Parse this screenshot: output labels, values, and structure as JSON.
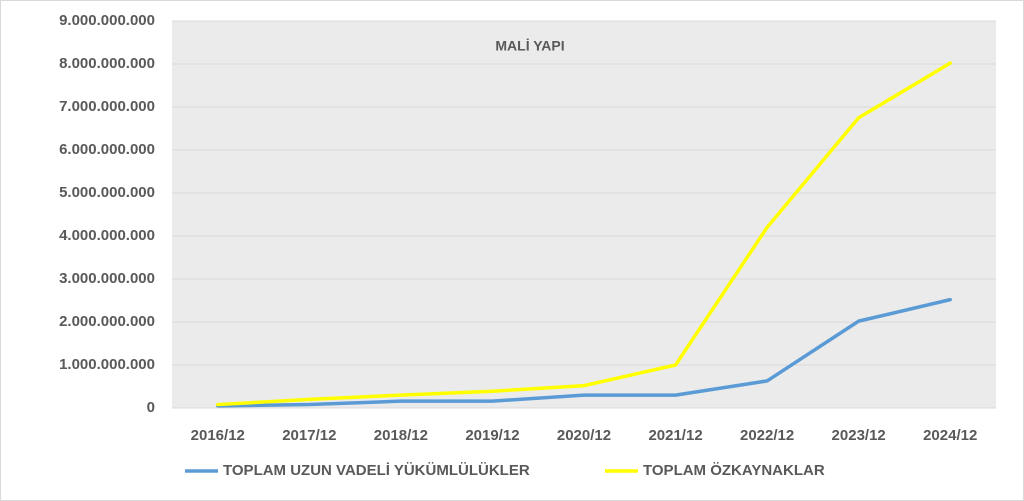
{
  "chart_data": {
    "type": "line",
    "title": "MALİ YAPI",
    "categories": [
      "2016/12",
      "2017/12",
      "2018/12",
      "2019/12",
      "2020/12",
      "2021/12",
      "2022/12",
      "2023/12",
      "2024/12"
    ],
    "series": [
      {
        "name": "TOPLAM UZUN VADELİ YÜKÜMLÜLÜKLER",
        "color": "#5b9bd5",
        "values": [
          50000000,
          80000000,
          160000000,
          160000000,
          300000000,
          300000000,
          630000000,
          2020000000,
          2520000000
        ]
      },
      {
        "name": "TOPLAM ÖZKAYNAKLAR",
        "color": "#ffff00",
        "values": [
          80000000,
          200000000,
          300000000,
          390000000,
          520000000,
          1000000000,
          4200000000,
          6750000000,
          8020000000
        ]
      }
    ],
    "ylim": [
      0,
      9000000000
    ],
    "yticks": [
      0,
      {
        "value": 1000000000,
        "label": "1.000.000.000"
      },
      {
        "value": 2000000000,
        "label": "2.000.000.000"
      },
      {
        "value": 3000000000,
        "label": "3.000.000.000"
      },
      {
        "value": 4000000000,
        "label": "4.000.000.000"
      },
      {
        "value": 5000000000,
        "label": "5.000.000.000"
      },
      {
        "value": 6000000000,
        "label": "6.000.000.000"
      },
      {
        "value": 7000000000,
        "label": "7.000.000.000"
      },
      {
        "value": 8000000000,
        "label": "8.000.000.000"
      },
      {
        "value": 9000000000,
        "label": "9.000.000.000"
      }
    ],
    "grid": true,
    "legend": "bottom"
  }
}
